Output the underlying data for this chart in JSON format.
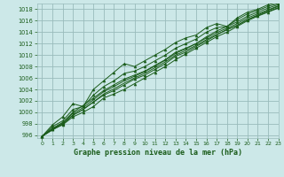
{
  "title": "Graphe pression niveau de la mer (hPa)",
  "bg_color": "#cce8e8",
  "grid_color": "#99bbbb",
  "line_color": "#1a5c1a",
  "xlim": [
    -0.5,
    23
  ],
  "ylim": [
    995.5,
    1019
  ],
  "xticks": [
    0,
    1,
    2,
    3,
    4,
    5,
    6,
    7,
    8,
    9,
    10,
    11,
    12,
    13,
    14,
    15,
    16,
    17,
    18,
    19,
    20,
    21,
    22,
    23
  ],
  "yticks": [
    996,
    998,
    1000,
    1002,
    1004,
    1006,
    1008,
    1010,
    1012,
    1014,
    1016,
    1018
  ],
  "series": [
    [
      995.8,
      997.0,
      997.8,
      999.2,
      1000.0,
      1001.0,
      1002.5,
      1003.2,
      1004.0,
      1005.0,
      1006.0,
      1007.0,
      1008.0,
      1009.2,
      1010.2,
      1011.2,
      1012.2,
      1013.2,
      1014.0,
      1015.0,
      1016.0,
      1016.8,
      1017.5,
      1018.2
    ],
    [
      995.8,
      997.0,
      998.0,
      999.5,
      1000.5,
      1001.8,
      1003.0,
      1003.8,
      1004.8,
      1005.8,
      1006.5,
      1007.5,
      1008.5,
      1009.8,
      1010.5,
      1011.5,
      1012.5,
      1013.5,
      1014.5,
      1015.2,
      1016.2,
      1017.0,
      1017.8,
      1018.5
    ],
    [
      995.8,
      997.2,
      998.2,
      1000.0,
      1001.2,
      1002.5,
      1003.8,
      1004.8,
      1005.8,
      1006.5,
      1007.2,
      1008.2,
      1009.2,
      1010.5,
      1011.2,
      1012.0,
      1013.2,
      1014.2,
      1015.0,
      1015.8,
      1016.8,
      1017.5,
      1018.2,
      1018.8
    ],
    [
      995.8,
      997.5,
      998.5,
      1000.5,
      1001.0,
      1003.0,
      1004.5,
      1005.5,
      1006.8,
      1007.2,
      1008.0,
      1009.0,
      1010.0,
      1011.2,
      1012.0,
      1012.8,
      1014.0,
      1014.8,
      1015.0,
      1016.2,
      1017.2,
      1017.8,
      1018.5,
      1019.0
    ],
    [
      995.8,
      997.8,
      999.2,
      1001.5,
      1001.0,
      1004.0,
      1005.5,
      1007.0,
      1008.5,
      1008.0,
      1009.0,
      1010.0,
      1011.0,
      1012.2,
      1013.0,
      1013.5,
      1014.8,
      1015.5,
      1015.0,
      1016.5,
      1017.5,
      1018.0,
      1018.8,
      1019.2
    ]
  ],
  "smooth_lines": [
    [
      995.8,
      996.9,
      997.9,
      999.5,
      1000.5,
      1001.8,
      1003.2,
      1004.1,
      1005.1,
      1006.0,
      1006.8,
      1007.8,
      1008.8,
      1010.0,
      1010.8,
      1011.7,
      1012.7,
      1013.6,
      1014.4,
      1015.2,
      1016.2,
      1016.9,
      1017.6,
      1018.3
    ],
    [
      995.8,
      997.1,
      998.2,
      999.8,
      1000.8,
      1002.2,
      1003.6,
      1004.5,
      1005.5,
      1006.3,
      1007.1,
      1008.1,
      1009.1,
      1010.3,
      1011.1,
      1012.0,
      1013.0,
      1013.9,
      1014.7,
      1015.5,
      1016.5,
      1017.2,
      1017.9,
      1018.6
    ]
  ]
}
